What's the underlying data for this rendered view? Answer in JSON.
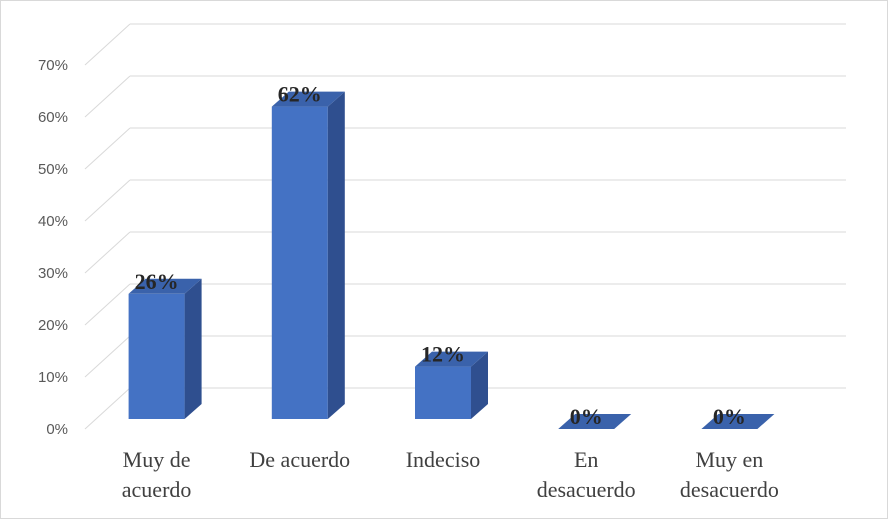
{
  "chart_data": {
    "type": "bar",
    "categories": [
      [
        "Muy de",
        "acuerdo"
      ],
      [
        "De acuerdo"
      ],
      [
        "Indeciso"
      ],
      [
        "En",
        "desacuerdo"
      ],
      [
        "Muy en",
        "desacuerdo"
      ]
    ],
    "values": [
      26,
      62,
      12,
      0,
      0
    ],
    "data_labels": [
      "26%",
      "62%",
      "12%",
      "0%",
      "0%"
    ],
    "yticks": [
      "0%",
      "10%",
      "20%",
      "30%",
      "40%",
      "50%",
      "60%",
      "70%"
    ],
    "ylim": [
      0,
      70
    ],
    "grid": true,
    "legend": "none",
    "style": "3d-column",
    "colors": {
      "front": "#4472c4",
      "side": "#2f4f8f",
      "top": "#3a62ab",
      "grid": "#d9d9d9"
    }
  }
}
